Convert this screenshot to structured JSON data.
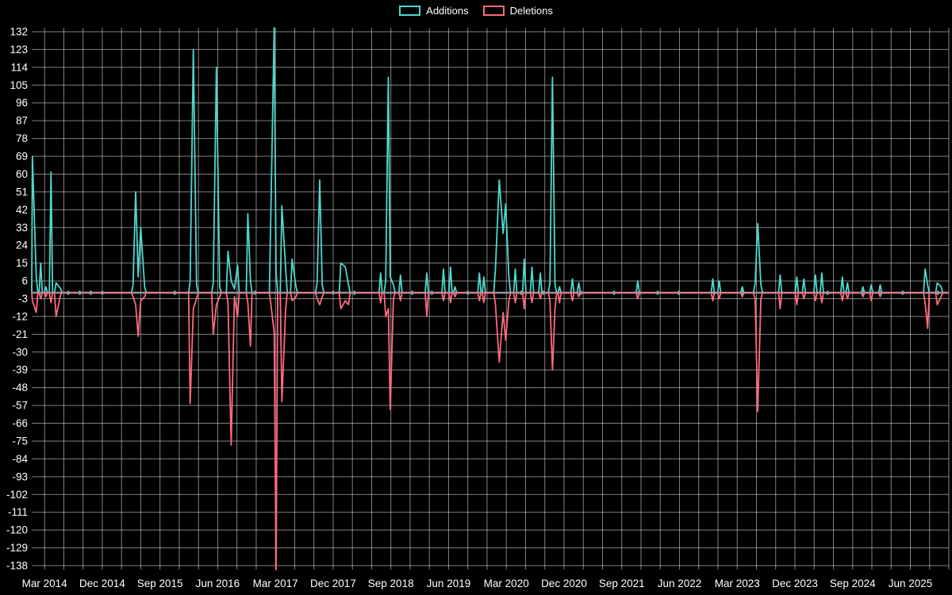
{
  "chart_data": {
    "type": "line",
    "title": "",
    "legend": {
      "position": "top-center",
      "items": [
        "Additions",
        "Deletions"
      ]
    },
    "series": [
      {
        "name": "Additions",
        "color": "#4ed8cd",
        "key": "a"
      },
      {
        "name": "Deletions",
        "color": "#ff6b7d",
        "key": "d"
      }
    ],
    "x_unit": "months since Mar 2014 (weekly commit activity)",
    "x_tick_labels": [
      "Mar 2014",
      "Dec 2014",
      "Sep 2015",
      "Jun 2016",
      "Mar 2017",
      "Dec 2017",
      "Sep 2018",
      "Jun 2019",
      "Mar 2020",
      "Dec 2020",
      "Sep 2021",
      "Jun 2022",
      "Mar 2023",
      "Dec 2023",
      "Sep 2024",
      "Jun 2025"
    ],
    "x_tick_step_months": 9,
    "y_ticks": [
      132,
      123,
      114,
      105,
      96,
      87,
      78,
      69,
      60,
      51,
      42,
      33,
      24,
      15,
      6,
      -3,
      -12,
      -21,
      -30,
      -39,
      -48,
      -57,
      -66,
      -75,
      -84,
      -93,
      -102,
      -111,
      -120,
      -129,
      -138
    ],
    "ylim": [
      -140,
      134
    ],
    "xlim_months": [
      -2,
      141
    ],
    "grid": {
      "show": true,
      "color": "rgba(255,255,255,0.5)",
      "x_step_months": 3,
      "y_step": 9
    },
    "zero_line_color": "#8b949e",
    "marker_color": "#8f9c9c",
    "background": "#000000",
    "text_color": "#ffffff",
    "points": [
      {
        "m": -1.9,
        "a": 69,
        "d": -4
      },
      {
        "m": -1.3,
        "a": 8,
        "d": -10
      },
      {
        "m": -0.6,
        "a": 15,
        "d": -3
      },
      {
        "m": 0.2,
        "a": 3,
        "d": -2
      },
      {
        "m": 1.0,
        "a": 61,
        "d": -5
      },
      {
        "m": 1.8,
        "a": 5,
        "d": -12
      },
      {
        "m": 2.5,
        "a": 2,
        "d": -1
      },
      {
        "m": 13.8,
        "a": 4,
        "d": -2
      },
      {
        "m": 14.2,
        "a": 51,
        "d": -6
      },
      {
        "m": 14.6,
        "a": 8,
        "d": -22
      },
      {
        "m": 15.0,
        "a": 33,
        "d": -4
      },
      {
        "m": 15.6,
        "a": 3,
        "d": -2
      },
      {
        "m": 22.7,
        "a": 6,
        "d": -56
      },
      {
        "m": 23.2,
        "a": 123,
        "d": -8
      },
      {
        "m": 23.7,
        "a": 4,
        "d": -3
      },
      {
        "m": 26.3,
        "a": 5,
        "d": -21
      },
      {
        "m": 26.8,
        "a": 114,
        "d": -6
      },
      {
        "m": 27.3,
        "a": 3,
        "d": -2
      },
      {
        "m": 28.6,
        "a": 21,
        "d": -5
      },
      {
        "m": 29.1,
        "a": 6,
        "d": -77
      },
      {
        "m": 29.6,
        "a": 2,
        "d": -2
      },
      {
        "m": 30.1,
        "a": 14,
        "d": -12
      },
      {
        "m": 31.7,
        "a": 40,
        "d": -5
      },
      {
        "m": 32.1,
        "a": 6,
        "d": -27
      },
      {
        "m": 35.3,
        "a": 42,
        "d": -6
      },
      {
        "m": 35.8,
        "a": 136,
        "d": -20
      },
      {
        "m": 36.1,
        "a": 10,
        "d": -141
      },
      {
        "m": 37.0,
        "a": 44,
        "d": -55
      },
      {
        "m": 37.6,
        "a": 12,
        "d": -8
      },
      {
        "m": 38.6,
        "a": 17,
        "d": -4
      },
      {
        "m": 39.2,
        "a": 3,
        "d": -2
      },
      {
        "m": 42.5,
        "a": 5,
        "d": -3
      },
      {
        "m": 42.9,
        "a": 57,
        "d": -6
      },
      {
        "m": 43.3,
        "a": 4,
        "d": -2
      },
      {
        "m": 46.2,
        "a": 15,
        "d": -8
      },
      {
        "m": 46.9,
        "a": 13,
        "d": -4
      },
      {
        "m": 47.4,
        "a": 4,
        "d": -6
      },
      {
        "m": 52.4,
        "a": 10,
        "d": -5
      },
      {
        "m": 53.2,
        "a": 6,
        "d": -12
      },
      {
        "m": 53.6,
        "a": 109,
        "d": -8
      },
      {
        "m": 53.9,
        "a": 8,
        "d": -59
      },
      {
        "m": 54.4,
        "a": 4,
        "d": -3
      },
      {
        "m": 55.5,
        "a": 9,
        "d": -4
      },
      {
        "m": 59.6,
        "a": 10,
        "d": -12
      },
      {
        "m": 62.2,
        "a": 12,
        "d": -4
      },
      {
        "m": 63.3,
        "a": 13,
        "d": -5
      },
      {
        "m": 64.0,
        "a": 3,
        "d": -2
      },
      {
        "m": 67.8,
        "a": 10,
        "d": -4
      },
      {
        "m": 68.5,
        "a": 8,
        "d": -5
      },
      {
        "m": 70.3,
        "a": 12,
        "d": -6
      },
      {
        "m": 70.9,
        "a": 57,
        "d": -35
      },
      {
        "m": 71.5,
        "a": 30,
        "d": -10
      },
      {
        "m": 71.9,
        "a": 45,
        "d": -24
      },
      {
        "m": 72.4,
        "a": 8,
        "d": -4
      },
      {
        "m": 73.4,
        "a": 12,
        "d": -5
      },
      {
        "m": 74.8,
        "a": 17,
        "d": -8
      },
      {
        "m": 76.0,
        "a": 13,
        "d": -5
      },
      {
        "m": 77.3,
        "a": 10,
        "d": -3
      },
      {
        "m": 78.8,
        "a": 5,
        "d": -4
      },
      {
        "m": 79.2,
        "a": 109,
        "d": -39
      },
      {
        "m": 79.6,
        "a": 4,
        "d": -8
      },
      {
        "m": 80.3,
        "a": 3,
        "d": -5
      },
      {
        "m": 82.3,
        "a": 7,
        "d": -4
      },
      {
        "m": 83.3,
        "a": 5,
        "d": -2
      },
      {
        "m": 92.5,
        "a": 6,
        "d": -3
      },
      {
        "m": 104.2,
        "a": 7,
        "d": -4
      },
      {
        "m": 105.2,
        "a": 6,
        "d": -3
      },
      {
        "m": 108.8,
        "a": 3,
        "d": -2
      },
      {
        "m": 110.8,
        "a": 5,
        "d": -3
      },
      {
        "m": 111.2,
        "a": 35,
        "d": -60
      },
      {
        "m": 111.7,
        "a": 4,
        "d": -3
      },
      {
        "m": 114.7,
        "a": 9,
        "d": -8
      },
      {
        "m": 117.3,
        "a": 8,
        "d": -6
      },
      {
        "m": 118.4,
        "a": 7,
        "d": -3
      },
      {
        "m": 120.2,
        "a": 9,
        "d": -4
      },
      {
        "m": 121.2,
        "a": 10,
        "d": -5
      },
      {
        "m": 124.4,
        "a": 8,
        "d": -4
      },
      {
        "m": 125.2,
        "a": 5,
        "d": -3
      },
      {
        "m": 127.6,
        "a": 3,
        "d": -2
      },
      {
        "m": 128.9,
        "a": 4,
        "d": -4
      },
      {
        "m": 130.3,
        "a": 4,
        "d": -2
      },
      {
        "m": 137.3,
        "a": 12,
        "d": -5
      },
      {
        "m": 137.7,
        "a": 4,
        "d": -18
      },
      {
        "m": 139.2,
        "a": 5,
        "d": -6
      },
      {
        "m": 139.8,
        "a": 3,
        "d": -2
      }
    ],
    "zero_markers_m": [
      3.7,
      5.5,
      7.2,
      9.0,
      20.3,
      32.8,
      45.0,
      48.3,
      57.3,
      60.4,
      66.0,
      74.3,
      77.8,
      83.6,
      88.8,
      92.7,
      95.6,
      98.9,
      104.4,
      108.8,
      122.1,
      127.6,
      130.4,
      133.8,
      139.3
    ]
  }
}
